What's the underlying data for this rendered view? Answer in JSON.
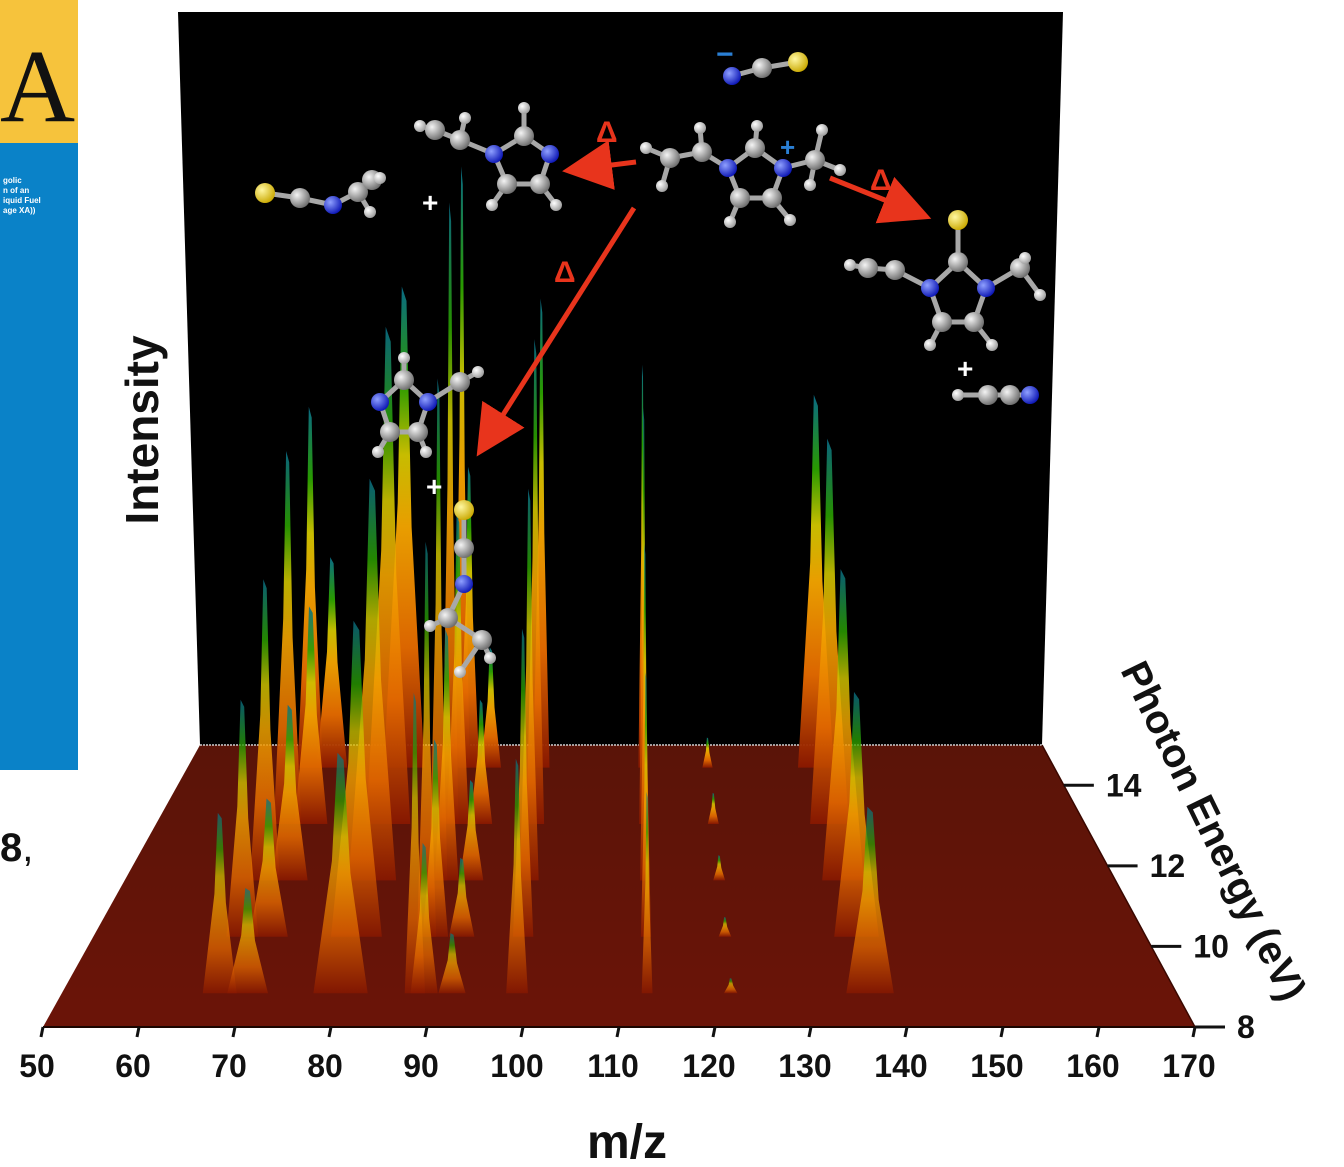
{
  "cover": {
    "letter": "A",
    "text": "golic\nn of an\niquid Fuel\nage XA))"
  },
  "fragment": {
    "number": "8",
    "comma": ","
  },
  "chart_data": {
    "type": "area",
    "title": "",
    "xlabel": "m/z",
    "ylabel": "Intensity",
    "zlabel": "Photon Energy (eV)",
    "xlim": [
      50,
      170
    ],
    "zlim": [
      8,
      15
    ],
    "xticks": [
      "50",
      "60",
      "70",
      "80",
      "90",
      "100",
      "110",
      "120",
      "130",
      "140",
      "150",
      "160",
      "170"
    ],
    "zticks": [
      "8",
      "10",
      "12",
      "14"
    ],
    "colormap": [
      "#7a1200",
      "#e06a00",
      "#f2a400",
      "#d9c800",
      "#2aa000",
      "#0a6f8a"
    ],
    "peaks": [
      {
        "mz": 67,
        "height": 0.6,
        "width": 2.5
      },
      {
        "mz": 70,
        "height": 0.35,
        "width": 3.0
      },
      {
        "mz": 80,
        "height": 0.8,
        "width": 4.0
      },
      {
        "mz": 88,
        "height": 1.0,
        "width": 1.5
      },
      {
        "mz": 89,
        "height": 0.5,
        "width": 2.0
      },
      {
        "mz": 92,
        "height": 0.2,
        "width": 2.0
      },
      {
        "mz": 99,
        "height": 0.78,
        "width": 1.6
      },
      {
        "mz": 113,
        "height": 0.67,
        "width": 0.8
      },
      {
        "mz": 122,
        "height": 0.05,
        "width": 1.0
      },
      {
        "mz": 137,
        "height": 0.62,
        "width": 3.5
      }
    ]
  },
  "annotations": {
    "delta": "Δ",
    "plus": "+",
    "cation_charge": "+",
    "anion_charge": "−"
  }
}
